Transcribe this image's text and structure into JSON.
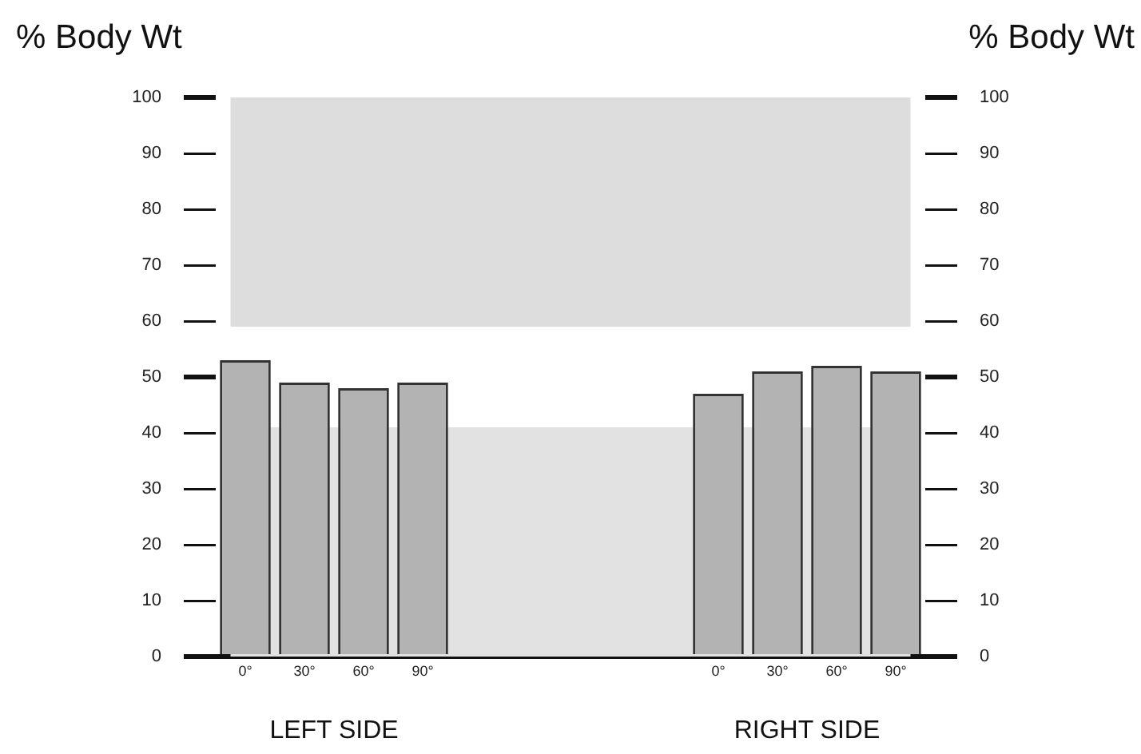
{
  "chart_data": {
    "type": "bar",
    "ylabel": "% Body Wt",
    "y2label": "% Body Wt",
    "categories": [
      "0°",
      "30°",
      "60°",
      "90°",
      null,
      null,
      null,
      null,
      "0°",
      "30°",
      "60°",
      "90°"
    ],
    "values": [
      53,
      49,
      48,
      49,
      null,
      null,
      null,
      null,
      47,
      51,
      52,
      51
    ],
    "color": "#b3b3b3",
    "ylim": [
      0,
      100
    ],
    "yticks": [
      0,
      10,
      20,
      30,
      40,
      50,
      60,
      70,
      80,
      90,
      100
    ],
    "y2lim": [
      0,
      100
    ],
    "y2ticks": [
      0,
      10,
      20,
      30,
      40,
      50,
      60,
      70,
      80,
      90,
      100
    ],
    "bands": [
      {
        "axis": "y",
        "from": 59,
        "to": 100,
        "color": "#dddddd"
      },
      {
        "axis": "y",
        "from": 0,
        "to": 41,
        "color": "#e2e2e2"
      }
    ],
    "annotations": [
      "LEFT SIDE",
      "RIGHT SIDE"
    ],
    "grid": false,
    "legend": false
  }
}
